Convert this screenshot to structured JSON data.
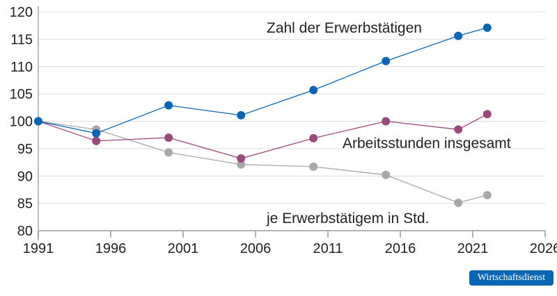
{
  "chart_data": {
    "type": "line",
    "xlim": [
      1991,
      2026
    ],
    "ylim": [
      80,
      120
    ],
    "xticks": [
      1991,
      1996,
      2001,
      2006,
      2011,
      2016,
      2021,
      2026
    ],
    "yticks": [
      80,
      85,
      90,
      95,
      100,
      105,
      110,
      115,
      120
    ],
    "grid": "horizontal",
    "x": [
      1991,
      1995,
      2000,
      2005,
      2010,
      2015,
      2020,
      2022
    ],
    "series": [
      {
        "name": "Zahl der Erwerbstätigen",
        "color": "#0a66b3",
        "values": [
          100,
          97.8,
          102.9,
          101.1,
          105.7,
          111.0,
          115.6,
          117.1
        ]
      },
      {
        "name": "Arbeitsstunden insgesamt",
        "color": "#9b4a7c",
        "values": [
          100,
          96.4,
          97.0,
          93.2,
          96.9,
          100.0,
          98.5,
          101.3
        ]
      },
      {
        "name": "je Erwerbstätigem in Std.",
        "color": "#a8a8a8",
        "values": [
          100,
          98.5,
          94.3,
          92.1,
          91.7,
          90.2,
          85.1,
          86.5
        ]
      }
    ]
  },
  "source_badge": "Wirtschaftsdienst"
}
